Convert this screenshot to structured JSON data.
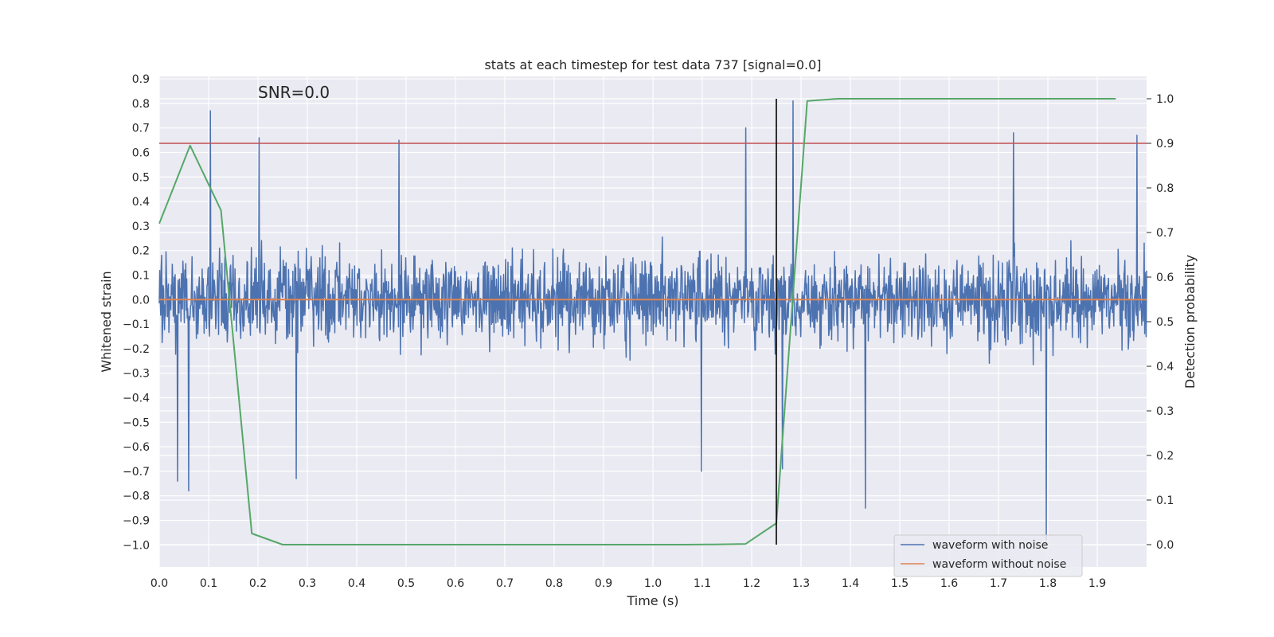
{
  "chart_data": {
    "type": "line",
    "title": "stats at each timestep for test data 737 [signal=0.0]",
    "annotation": "SNR=0.0",
    "xlabel": "Time (s)",
    "ylabel_left": "Whitened strain",
    "ylabel_right": "Detection probability",
    "xlim": [
      0.0,
      2.0
    ],
    "ylim_left": [
      -1.09,
      0.91
    ],
    "ylim_right": [
      -0.05,
      1.05
    ],
    "x_ticks": [
      "0.0",
      "0.1",
      "0.2",
      "0.3",
      "0.4",
      "0.5",
      "0.6",
      "0.7",
      "0.8",
      "0.9",
      "1.0",
      "1.1",
      "1.2",
      "1.3",
      "1.4",
      "1.5",
      "1.6",
      "1.7",
      "1.8",
      "1.9"
    ],
    "y_left_ticks": [
      "0.9",
      "0.8",
      "0.7",
      "0.6",
      "0.5",
      "0.4",
      "0.3",
      "0.2",
      "0.1",
      "0.0",
      "−0.1",
      "−0.2",
      "−0.3",
      "−0.4",
      "−0.5",
      "−0.6",
      "−0.7",
      "−0.8",
      "−0.9",
      "−1.0"
    ],
    "y_right_ticks": [
      "1.0",
      "0.9",
      "0.8",
      "0.7",
      "0.6",
      "0.5",
      "0.4",
      "0.3",
      "0.2",
      "0.1",
      "0.0"
    ],
    "grid": true,
    "legend_position": "bottom-right",
    "series": [
      {
        "name": "waveform with noise",
        "axis": "left",
        "color": "#4c72b0",
        "kind": "dense-noise",
        "x_range": [
          0.0,
          2.0
        ],
        "approx_range": [
          -0.98,
          0.81
        ],
        "peaks": [
          [
            0.104,
            0.77
          ],
          [
            0.202,
            0.66
          ],
          [
            0.486,
            0.65
          ],
          [
            1.188,
            0.7
          ],
          [
            1.284,
            0.81
          ],
          [
            1.73,
            0.68
          ],
          [
            1.98,
            0.67
          ],
          [
            0.06,
            -0.78
          ],
          [
            0.037,
            -0.74
          ],
          [
            0.277,
            -0.73
          ],
          [
            1.098,
            -0.7
          ],
          [
            1.43,
            -0.85
          ],
          [
            1.797,
            -0.98
          ],
          [
            1.262,
            -0.69
          ]
        ]
      },
      {
        "name": "waveform without noise",
        "axis": "left",
        "color": "#dd8452",
        "x": [
          0.0,
          2.0
        ],
        "y": [
          0.0,
          0.0
        ]
      },
      {
        "name": "",
        "axis": "right",
        "color": "#55a868",
        "x": [
          0.0,
          0.0625,
          0.125,
          0.1875,
          0.25,
          0.3125,
          0.375,
          0.4375,
          0.5,
          0.5625,
          0.625,
          0.6875,
          0.75,
          0.8125,
          0.875,
          0.9375,
          1.0,
          1.0625,
          1.125,
          1.1875,
          1.25,
          1.3125,
          1.375,
          1.4375,
          1.5,
          1.5625,
          1.625,
          1.6875,
          1.75,
          1.8125,
          1.875,
          1.9375
        ],
        "y": [
          0.72,
          0.895,
          0.75,
          0.025,
          0.0,
          0.0,
          0.0,
          0.0,
          0.0,
          0.0,
          0.0,
          0.0,
          0.0,
          0.0,
          0.0,
          0.0,
          0.0,
          0.0,
          0.0005,
          0.0015,
          0.048,
          0.995,
          1.0,
          1.0,
          1.0,
          1.0,
          1.0,
          1.0,
          1.0,
          1.0,
          1.0,
          1.0
        ]
      }
    ],
    "threshold": {
      "axis": "right",
      "value": 0.9,
      "color": "#c44e52"
    },
    "marker_vline": {
      "x": 1.25,
      "y_right_range": [
        0.0,
        1.0
      ],
      "color": "#000000"
    },
    "legend": [
      {
        "label": "waveform with noise",
        "color": "#4c72b0"
      },
      {
        "label": "waveform without noise",
        "color": "#dd8452"
      }
    ],
    "colors": {
      "plot_bg": "#eaeaf2",
      "grid": "#ffffff",
      "text": "#262626"
    }
  }
}
